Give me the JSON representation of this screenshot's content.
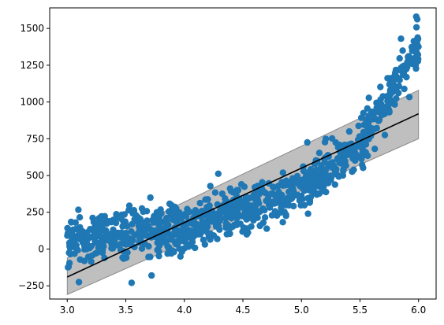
{
  "colors": {
    "points": "#1f77b4",
    "fit_line": "#000000",
    "band_fill": "#808080",
    "band_edge": "#555555",
    "axes": "#000000"
  },
  "chart_data": {
    "type": "scatter",
    "title": "",
    "xlabel": "",
    "ylabel": "",
    "xlim": [
      2.85,
      6.15
    ],
    "ylim": [
      -340,
      1640
    ],
    "x_ticks": [
      3.0,
      3.5,
      4.0,
      4.5,
      5.0,
      5.5,
      6.0
    ],
    "x_tick_labels": [
      "3.0",
      "3.5",
      "4.0",
      "4.5",
      "5.0",
      "5.5",
      "6.0"
    ],
    "y_ticks": [
      -250,
      0,
      250,
      500,
      750,
      1000,
      1250,
      1500
    ],
    "y_tick_labels": [
      "−250",
      "0",
      "250",
      "500",
      "750",
      "1000",
      "1250",
      "1500"
    ],
    "grid": false,
    "legend": "none",
    "fit_line": {
      "x": [
        3.0,
        6.0
      ],
      "y": [
        -190,
        920
      ]
    },
    "prediction_band": {
      "x": [
        3.0,
        6.0
      ],
      "lower": [
        -310,
        750
      ],
      "upper": [
        -60,
        1080
      ]
    },
    "scatter": {
      "count": 1000,
      "x_range": [
        3.0,
        6.0
      ],
      "trend": "cubic",
      "trend_y_at": {
        "3.0": 70,
        "4.0": 150,
        "5.0": 400,
        "5.5": 700,
        "6.0": 1400
      },
      "noise_std": 80,
      "notable_points": [
        {
          "x": 5.98,
          "y": 1580
        },
        {
          "x": 4.29,
          "y": 512
        },
        {
          "x": 5.05,
          "y": 725
        },
        {
          "x": 3.55,
          "y": -230
        },
        {
          "x": 3.1,
          "y": -225
        },
        {
          "x": 3.72,
          "y": -180
        },
        {
          "x": 3.71,
          "y": 350
        },
        {
          "x": 5.85,
          "y": 1430
        }
      ]
    }
  }
}
